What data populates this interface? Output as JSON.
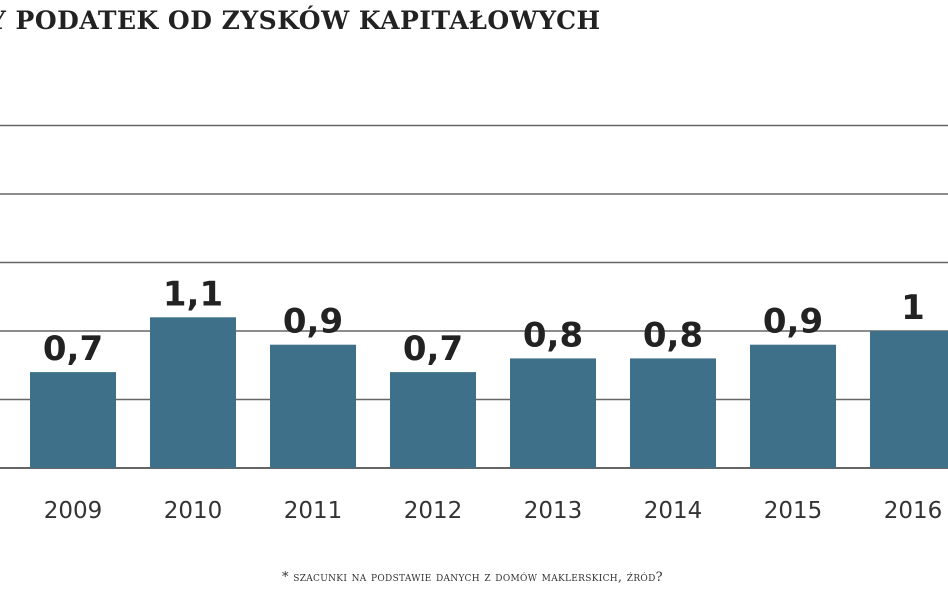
{
  "title": "Y PODATEK OD ZYSKÓW KAPITAŁOWYCH",
  "footnote": "* szacunki na podstawie danych z domów maklerskich, źród?",
  "colors": {
    "bar": "#3f7089",
    "grid": "#666666",
    "text": "#222222"
  },
  "chart_data": {
    "type": "bar",
    "title": "Y PODATEK OD ZYSKÓW KAPITAŁOWYCH",
    "xlabel": "",
    "ylabel": "",
    "categories": [
      "2009",
      "2010",
      "2011",
      "2012",
      "2013",
      "2014",
      "2015",
      "2016"
    ],
    "values": [
      0.7,
      1.1,
      0.9,
      0.7,
      0.8,
      0.8,
      0.9,
      1
    ],
    "value_labels": [
      "0,7",
      "1,1",
      "0,9",
      "0,7",
      "0,8",
      "0,8",
      "0,9",
      "1"
    ],
    "ylim": [
      0,
      2.5
    ],
    "grid": true,
    "legend": "none"
  }
}
